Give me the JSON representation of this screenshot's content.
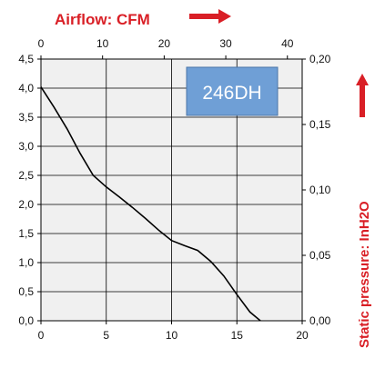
{
  "chart_data": {
    "type": "line",
    "top_axis_label": "Airflow: CFM",
    "right_axis_label": "Static pressure: InH2O",
    "model_label": "246DH",
    "x_bottom": {
      "range": [
        0,
        20
      ],
      "ticks": [
        "0",
        "5",
        "10",
        "15",
        "20"
      ]
    },
    "x_top": {
      "range": [
        0,
        42.4
      ],
      "ticks": [
        "0",
        "10",
        "20",
        "30",
        "40"
      ],
      "tick_values": [
        0,
        10,
        20,
        30,
        40
      ]
    },
    "y_left": {
      "range": [
        0,
        4.5
      ],
      "ticks": [
        "0,0",
        "0,5",
        "1,0",
        "1,5",
        "2,0",
        "2,5",
        "3,0",
        "3,5",
        "4,0",
        "4,5"
      ]
    },
    "y_right": {
      "range": [
        0,
        0.2
      ],
      "ticks": [
        "0,00",
        "0,05",
        "0,10",
        "0,15",
        "0,20"
      ],
      "tick_values": [
        0,
        0.05,
        0.1,
        0.15,
        0.2
      ]
    },
    "grid": true,
    "series": [
      {
        "color": "#000000",
        "x": [
          0,
          1,
          2,
          3,
          4,
          5,
          6,
          7,
          8,
          9,
          10,
          11,
          12,
          13,
          14,
          15,
          16,
          16.8
        ],
        "y": [
          4.02,
          3.67,
          3.3,
          2.88,
          2.5,
          2.3,
          2.13,
          1.95,
          1.76,
          1.56,
          1.38,
          1.29,
          1.21,
          1.02,
          0.77,
          0.45,
          0.15,
          0.0
        ]
      }
    ]
  },
  "colors": {
    "plot_background": "#f0f0f0",
    "grid": "#000000",
    "accent_red": "#d91f26",
    "model_box": "#6f9fd6",
    "model_box_border": "#4b76a8"
  }
}
